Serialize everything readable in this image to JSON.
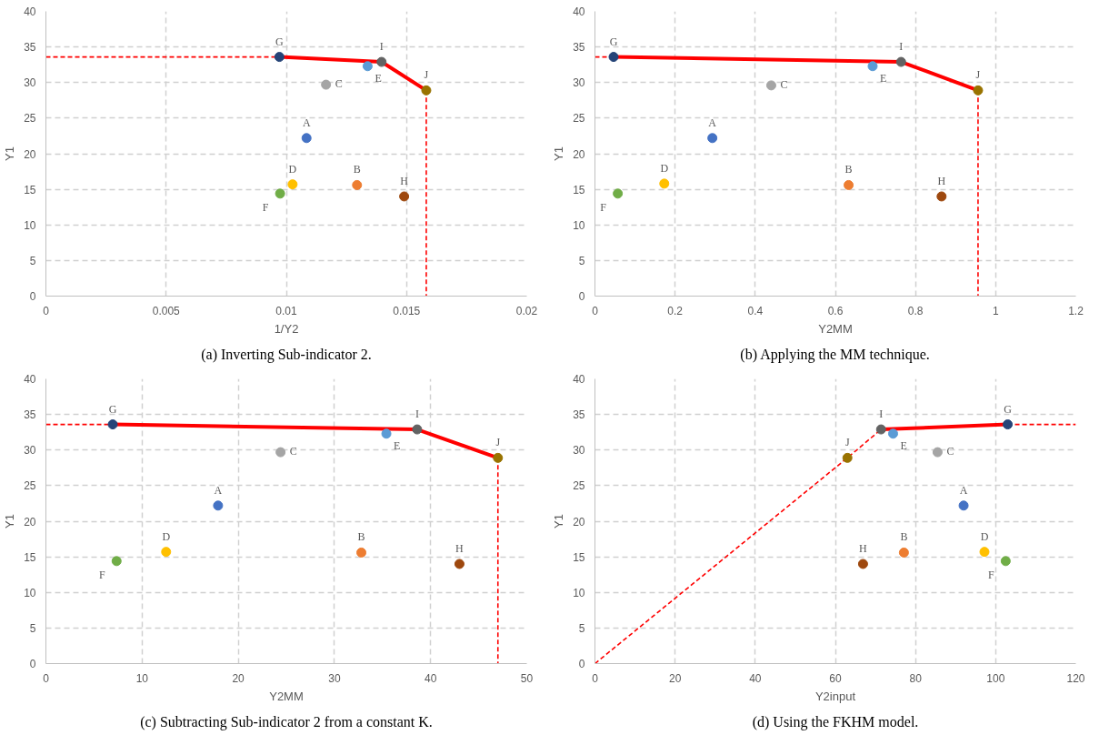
{
  "chart_data": [
    {
      "type": "scatter",
      "title": "(a) Inverting Sub-indicator 2.",
      "xlabel": "1/Y2",
      "ylabel": "Y1",
      "xlim": [
        0,
        0.02
      ],
      "ylim": [
        0,
        40
      ],
      "xticks": [
        0,
        0.005,
        0.01,
        0.015,
        0.02
      ],
      "yticks": [
        0,
        5,
        10,
        15,
        20,
        25,
        30,
        35,
        40
      ],
      "grid": true,
      "marker": "circle",
      "series": [
        {
          "name": "A",
          "color": "#4472c4",
          "x": [
            0.01084
          ],
          "values": [
            22.2
          ]
        },
        {
          "name": "B",
          "color": "#ed7d31",
          "x": [
            0.01294
          ],
          "values": [
            15.6
          ]
        },
        {
          "name": "C",
          "color": "#a5a5a5",
          "x": [
            0.01165
          ],
          "values": [
            29.7
          ]
        },
        {
          "name": "D",
          "color": "#ffc000",
          "x": [
            0.01026
          ],
          "values": [
            15.7
          ]
        },
        {
          "name": "E",
          "color": "#5b9bd5",
          "x": [
            0.01338
          ],
          "values": [
            32.3
          ]
        },
        {
          "name": "F",
          "color": "#70ad47",
          "x": [
            0.00974
          ],
          "values": [
            14.4
          ]
        },
        {
          "name": "G",
          "color": "#264478",
          "x": [
            0.00971
          ],
          "values": [
            33.6
          ]
        },
        {
          "name": "H",
          "color": "#9e480e",
          "x": [
            0.0149
          ],
          "values": [
            14.0
          ]
        },
        {
          "name": "I",
          "color": "#636363",
          "x": [
            0.01396
          ],
          "values": [
            32.9
          ]
        },
        {
          "name": "J",
          "color": "#997300",
          "x": [
            0.01582
          ],
          "values": [
            28.9
          ]
        },
        {
          "type": "line",
          "color": "#ff0000",
          "line_style": "solid",
          "marker": "none",
          "x": [
            0.00971,
            0.01396,
            0.01582
          ],
          "values": [
            33.6,
            32.9,
            28.9
          ]
        },
        {
          "type": "line",
          "color": "#ff0000",
          "line_style": "dashed",
          "marker": "none",
          "x": [
            0,
            0.00971
          ],
          "values": [
            33.6,
            33.6
          ]
        },
        {
          "type": "line",
          "color": "#ff0000",
          "line_style": "dashed",
          "marker": "none",
          "x": [
            0.01582,
            0.01582
          ],
          "values": [
            28.9,
            0
          ]
        }
      ]
    },
    {
      "type": "scatter",
      "title": "(b) Applying the MM technique.",
      "xlabel": "Y2MM",
      "ylabel": "Y1",
      "xlim": [
        0,
        1.2
      ],
      "ylim": [
        0,
        40
      ],
      "xticks": [
        0,
        0.2,
        0.4,
        0.6,
        0.8,
        1,
        1.2
      ],
      "yticks": [
        0,
        5,
        10,
        15,
        20,
        25,
        30,
        35,
        40
      ],
      "grid": true,
      "marker": "circle",
      "series": [
        {
          "name": "A",
          "color": "#4472c4",
          "x": [
            0.293
          ],
          "values": [
            22.2
          ]
        },
        {
          "name": "B",
          "color": "#ed7d31",
          "x": [
            0.633
          ],
          "values": [
            15.6
          ]
        },
        {
          "name": "C",
          "color": "#a5a5a5",
          "x": [
            0.44
          ],
          "values": [
            29.6
          ]
        },
        {
          "name": "D",
          "color": "#ffc000",
          "x": [
            0.173
          ],
          "values": [
            15.8
          ]
        },
        {
          "name": "E",
          "color": "#5b9bd5",
          "x": [
            0.693
          ],
          "values": [
            32.3
          ]
        },
        {
          "name": "F",
          "color": "#70ad47",
          "x": [
            0.057
          ],
          "values": [
            14.4
          ]
        },
        {
          "name": "G",
          "color": "#264478",
          "x": [
            0.0465
          ],
          "values": [
            33.6
          ]
        },
        {
          "name": "H",
          "color": "#9e480e",
          "x": [
            0.865
          ],
          "values": [
            14.0
          ]
        },
        {
          "name": "I",
          "color": "#636363",
          "x": [
            0.764
          ],
          "values": [
            32.9
          ]
        },
        {
          "name": "J",
          "color": "#997300",
          "x": [
            0.956
          ],
          "values": [
            28.9
          ]
        },
        {
          "type": "line",
          "color": "#ff0000",
          "line_style": "solid",
          "marker": "none",
          "x": [
            0.0465,
            0.764,
            0.956
          ],
          "values": [
            33.6,
            32.9,
            28.9
          ]
        },
        {
          "type": "line",
          "color": "#ff0000",
          "line_style": "dashed",
          "marker": "none",
          "x": [
            0,
            0.0465
          ],
          "values": [
            33.6,
            33.6
          ]
        },
        {
          "type": "line",
          "color": "#ff0000",
          "line_style": "dashed",
          "marker": "none",
          "x": [
            0.956,
            0.956
          ],
          "values": [
            28.9,
            0
          ]
        }
      ]
    },
    {
      "type": "scatter",
      "title": "(c) Subtracting Sub-indicator 2 from a constant K.",
      "xlabel": "Y2MM",
      "ylabel": "Y1",
      "xlim": [
        0,
        50
      ],
      "ylim": [
        0,
        40
      ],
      "xticks": [
        0,
        10,
        20,
        30,
        40,
        50
      ],
      "yticks": [
        0,
        5,
        10,
        15,
        20,
        25,
        30,
        35,
        40
      ],
      "grid": true,
      "marker": "circle",
      "series": [
        {
          "name": "A",
          "color": "#4472c4",
          "x": [
            17.9
          ],
          "values": [
            22.2
          ]
        },
        {
          "name": "B",
          "color": "#ed7d31",
          "x": [
            32.8
          ],
          "values": [
            15.6
          ]
        },
        {
          "name": "C",
          "color": "#a5a5a5",
          "x": [
            24.4
          ],
          "values": [
            29.7
          ]
        },
        {
          "name": "D",
          "color": "#ffc000",
          "x": [
            12.5
          ],
          "values": [
            15.7
          ]
        },
        {
          "name": "E",
          "color": "#5b9bd5",
          "x": [
            35.4
          ],
          "values": [
            32.3
          ]
        },
        {
          "name": "F",
          "color": "#70ad47",
          "x": [
            7.35
          ],
          "values": [
            14.4
          ]
        },
        {
          "name": "G",
          "color": "#264478",
          "x": [
            6.95
          ],
          "values": [
            33.6
          ]
        },
        {
          "name": "H",
          "color": "#9e480e",
          "x": [
            43.0
          ],
          "values": [
            14.0
          ]
        },
        {
          "name": "I",
          "color": "#636363",
          "x": [
            38.6
          ],
          "values": [
            32.9
          ]
        },
        {
          "name": "J",
          "color": "#997300",
          "x": [
            47.0
          ],
          "values": [
            28.9
          ]
        },
        {
          "type": "line",
          "color": "#ff0000",
          "line_style": "solid",
          "marker": "none",
          "x": [
            6.95,
            38.6,
            47.0
          ],
          "values": [
            33.6,
            32.9,
            28.9
          ]
        },
        {
          "type": "line",
          "color": "#ff0000",
          "line_style": "dashed",
          "marker": "none",
          "x": [
            0,
            6.95
          ],
          "values": [
            33.6,
            33.6
          ]
        },
        {
          "type": "line",
          "color": "#ff0000",
          "line_style": "dashed",
          "marker": "none",
          "x": [
            47.0,
            47.0
          ],
          "values": [
            28.9,
            0
          ]
        }
      ]
    },
    {
      "type": "scatter",
      "title": "(d) Using the FKHM model.",
      "xlabel": "Y2input",
      "ylabel": "Y1",
      "xlim": [
        0,
        120
      ],
      "ylim": [
        0,
        40
      ],
      "xticks": [
        0,
        20,
        40,
        60,
        80,
        100,
        120
      ],
      "yticks": [
        0,
        5,
        10,
        15,
        20,
        25,
        30,
        35,
        40
      ],
      "grid": true,
      "marker": "circle",
      "series": [
        {
          "name": "A",
          "color": "#4472c4",
          "x": [
            92.0
          ],
          "values": [
            22.2
          ]
        },
        {
          "name": "B",
          "color": "#ed7d31",
          "x": [
            77.1
          ],
          "values": [
            15.6
          ]
        },
        {
          "name": "C",
          "color": "#a5a5a5",
          "x": [
            85.5
          ],
          "values": [
            29.7
          ]
        },
        {
          "name": "D",
          "color": "#ffc000",
          "x": [
            97.2
          ],
          "values": [
            15.7
          ]
        },
        {
          "name": "E",
          "color": "#5b9bd5",
          "x": [
            74.4
          ],
          "values": [
            32.3
          ]
        },
        {
          "name": "F",
          "color": "#70ad47",
          "x": [
            102.5
          ],
          "values": [
            14.4
          ]
        },
        {
          "name": "G",
          "color": "#264478",
          "x": [
            103.0
          ],
          "values": [
            33.6
          ]
        },
        {
          "name": "H",
          "color": "#9e480e",
          "x": [
            66.9
          ],
          "values": [
            14.0
          ]
        },
        {
          "name": "I",
          "color": "#636363",
          "x": [
            71.4
          ],
          "values": [
            32.9
          ]
        },
        {
          "name": "J",
          "color": "#997300",
          "x": [
            63.0
          ],
          "values": [
            28.9
          ]
        },
        {
          "type": "line",
          "color": "#ff0000",
          "line_style": "solid",
          "marker": "none",
          "x": [
            71.4,
            103.0
          ],
          "values": [
            32.9,
            33.6
          ]
        },
        {
          "type": "line",
          "color": "#ff0000",
          "line_style": "dashed",
          "marker": "none",
          "x": [
            0,
            63.0,
            71.4
          ],
          "values": [
            0,
            28.9,
            32.9
          ]
        },
        {
          "type": "line",
          "color": "#ff0000",
          "line_style": "dashed",
          "marker": "none",
          "x": [
            103.0,
            120
          ],
          "values": [
            33.6,
            33.6
          ]
        }
      ]
    }
  ]
}
